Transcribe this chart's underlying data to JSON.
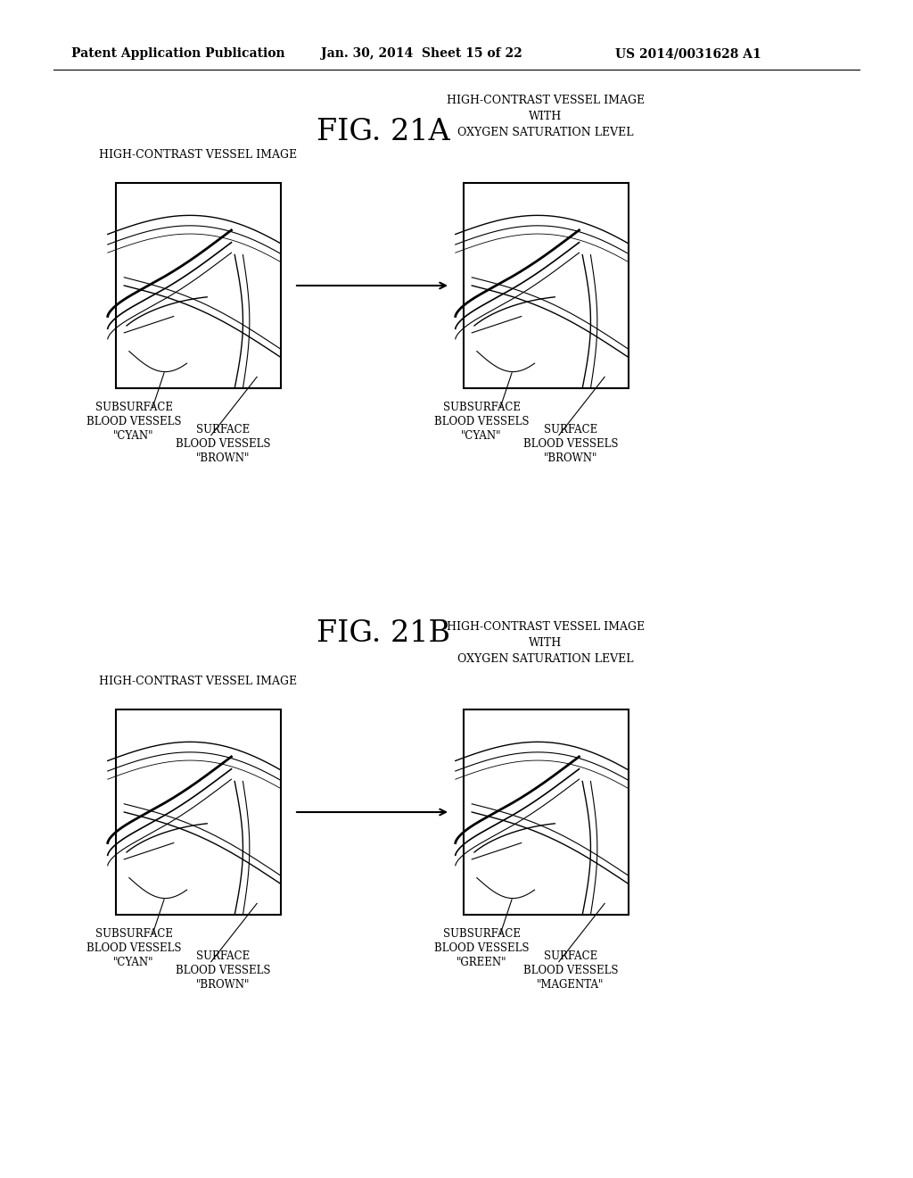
{
  "bg_color": "#ffffff",
  "header_left": "Patent Application Publication",
  "header_mid": "Jan. 30, 2014  Sheet 15 of 22",
  "header_right": "US 2014/0031628 A1",
  "fig21a_title": "FIG. 21A",
  "fig21b_title": "FIG. 21B",
  "label_hc_vessel": "HIGH-CONTRAST VESSEL IMAGE",
  "label_hc_vessel_oxy": "HIGH-CONTRAST VESSEL IMAGE\nWITH\nOXYGEN SATURATION LEVEL",
  "label_subsurface_cyan": "SUBSURFACE\nBLOOD VESSELS\n\"CYAN\"",
  "label_surface_brown": "SURFACE\nBLOOD VESSELS\n\"BROWN\"",
  "label_subsurface_green": "SUBSURFACE\nBLOOD VESSELS\n\"GREEN\"",
  "label_surface_magenta": "SURFACE\nBLOOD VESSELS\n\"MAGENTA\""
}
